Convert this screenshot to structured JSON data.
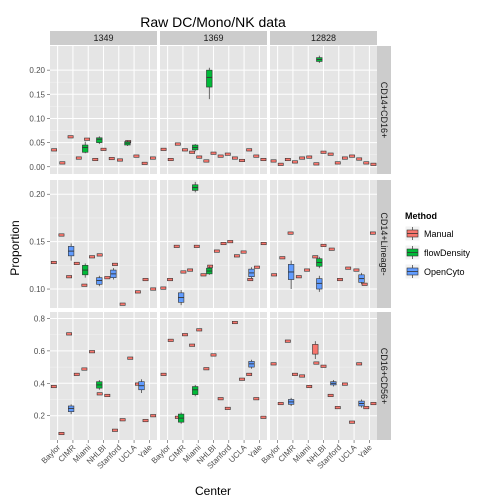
{
  "chart_data": {
    "type": "boxplot",
    "title": "Raw DC/Mono/NK data",
    "xlabel": "Center",
    "ylabel": "Proportion",
    "categories": [
      "Baylor",
      "CIMR",
      "Miami",
      "NHLBI",
      "Stanford",
      "UCLA",
      "Yale"
    ],
    "methods": [
      "Manual",
      "flowDensity",
      "OpenCyto"
    ],
    "method_colors": {
      "Manual": "#F8766D",
      "flowDensity": "#00BA38",
      "OpenCyto": "#619CFF"
    },
    "legend": {
      "title": "Method",
      "position": "right"
    },
    "columns": [
      "1349",
      "1369",
      "12828"
    ],
    "rows": [
      {
        "label": "CD14+CD16+",
        "ylim": [
          -0.015,
          0.25
        ],
        "yticks": [
          0.0,
          0.05,
          0.1,
          0.15,
          0.2
        ],
        "ticklabels": [
          "0.00",
          "0.05",
          "0.10",
          "0.15",
          "0.20"
        ]
      },
      {
        "label": "CD14+Lineage-",
        "ylim": [
          0.08,
          0.215
        ],
        "yticks": [
          0.05,
          0.1,
          0.15,
          0.2
        ],
        "ticklabels": [
          "0.05",
          "0.10",
          "0.15",
          "0.20"
        ]
      },
      {
        "label": "CD16+CD56+",
        "ylim": [
          0.05,
          0.84
        ],
        "yticks": [
          0.2,
          0.4,
          0.6,
          0.8
        ],
        "ticklabels": [
          "0.2",
          "0.4",
          "0.6",
          "0.8"
        ]
      }
    ],
    "panels": [
      [
        {
          "Manual": [
            0.035,
            0.008,
            0.062,
            0.018,
            0.057,
            0.015,
            0.036,
            0.017,
            0.014,
            0.052,
            0.022,
            0.007,
            0.018
          ],
          "flowDensity": [
            [
              2,
              0.04,
              0.03,
              0.045,
              0.028,
              0.052
            ],
            [
              3,
              0.057,
              0.05,
              0.06,
              0.047,
              0.063
            ],
            [
              5,
              0.049,
              0.045,
              0.052,
              0.043,
              0.054
            ]
          ],
          "OpenCyto": []
        },
        {
          "Manual": [
            0.036,
            0.015,
            0.047,
            0.035,
            0.03,
            0.02,
            0.012,
            0.028,
            0.022,
            0.026,
            0.018,
            0.013,
            0.035,
            0.022,
            0.015
          ],
          "flowDensity": [
            [
              2,
              0.04,
              0.035,
              0.045,
              0.032,
              0.047
            ],
            [
              3,
              0.185,
              0.165,
              0.2,
              0.14,
              0.205
            ]
          ],
          "OpenCyto": []
        },
        {
          "Manual": [
            0.012,
            0.005,
            0.015,
            0.01,
            0.018,
            0.02,
            0.006,
            0.03,
            0.026,
            0.008,
            0.018,
            0.022,
            0.016,
            0.008,
            0.005
          ],
          "flowDensity": [
            [
              3,
              0.222,
              0.218,
              0.226,
              0.215,
              0.23
            ]
          ],
          "OpenCyto": []
        }
      ],
      [
        {
          "Manual": [
            0.128,
            0.157,
            0.113,
            0.127,
            0.104,
            0.134,
            0.136,
            0.112,
            0.126,
            0.084,
            0.077,
            0.097,
            0.11,
            0.1
          ],
          "flowDensity": [
            [
              2,
              0.12,
              0.115,
              0.125,
              0.112,
              0.127
            ]
          ],
          "OpenCyto": [
            [
              1,
              0.14,
              0.135,
              0.145,
              0.13,
              0.148
            ],
            [
              3,
              0.109,
              0.105,
              0.112,
              0.103,
              0.114
            ],
            [
              4,
              0.116,
              0.112,
              0.12,
              0.11,
              0.122
            ],
            [
              6,
              0.048,
              0.044,
              0.052,
              0.042,
              0.054
            ]
          ]
        },
        {
          "Manual": [
            0.101,
            0.11,
            0.145,
            0.118,
            0.12,
            0.145,
            0.115,
            0.124,
            0.14,
            0.148,
            0.15,
            0.135,
            0.139,
            0.11,
            0.123,
            0.148
          ],
          "flowDensity": [
            [
              2,
              0.207,
              0.204,
              0.21,
              0.202,
              0.213
            ],
            [
              3,
              0.119,
              0.116,
              0.122,
              0.115,
              0.124
            ]
          ],
          "OpenCyto": [
            [
              1,
              0.091,
              0.086,
              0.096,
              0.083,
              0.099
            ],
            [
              6,
              0.117,
              0.113,
              0.121,
              0.111,
              0.123
            ]
          ]
        },
        {
          "Manual": [
            0.115,
            0.133,
            0.159,
            0.113,
            0.12,
            0.134,
            0.146,
            0.142,
            0.11,
            0.122,
            0.12,
            0.105,
            0.159
          ],
          "flowDensity": [
            [
              3,
              0.128,
              0.124,
              0.132,
              0.122,
              0.134
            ]
          ],
          "OpenCyto": [
            [
              1,
              0.118,
              0.11,
              0.126,
              0.1,
              0.13
            ],
            [
              3,
              0.106,
              0.1,
              0.111,
              0.097,
              0.114
            ],
            [
              6,
              0.111,
              0.107,
              0.115,
              0.105,
              0.117
            ]
          ]
        }
      ],
      [
        {
          "Manual": [
            0.38,
            0.09,
            0.705,
            0.455,
            0.488,
            0.595,
            0.335,
            0.325,
            0.11,
            0.175,
            0.555,
            0.395,
            0.17,
            0.2
          ],
          "flowDensity": [
            [
              3,
              0.39,
              0.37,
              0.41,
              0.36,
              0.42
            ]
          ],
          "OpenCyto": [
            [
              1,
              0.245,
              0.225,
              0.26,
              0.21,
              0.27
            ],
            [
              6,
              0.385,
              0.36,
              0.41,
              0.34,
              0.425
            ]
          ]
        },
        {
          "Manual": [
            0.455,
            0.665,
            0.19,
            0.7,
            0.635,
            0.73,
            0.49,
            0.575,
            0.305,
            0.245,
            0.775,
            0.425,
            0.455,
            0.305,
            0.19
          ],
          "flowDensity": [
            [
              1,
              0.185,
              0.16,
              0.21,
              0.15,
              0.22
            ],
            [
              2,
              0.36,
              0.33,
              0.38,
              0.32,
              0.39
            ]
          ],
          "OpenCyto": [
            [
              6,
              0.52,
              0.5,
              0.535,
              0.49,
              0.545
            ]
          ]
        },
        {
          "Manual": [
            0.52,
            0.275,
            0.66,
            0.455,
            0.445,
            0.38,
            0.525,
            0.505,
            0.325,
            0.25,
            0.395,
            0.16,
            0.52,
            0.25,
            0.275
          ],
          "flowDensity": [],
          "OpenCyto": [
            [
              1,
              0.285,
              0.27,
              0.3,
              0.26,
              0.31
            ],
            [
              4,
              0.4,
              0.39,
              0.41,
              0.38,
              0.42
            ],
            [
              6,
              0.275,
              0.26,
              0.29,
              0.25,
              0.3
            ]
          ]
        }
      ]
    ],
    "manual_big_boxes": [
      [
        2,
        2,
        5,
        [
          0.61,
          0.58,
          0.64,
          0.55,
          0.66
        ]
      ]
    ]
  }
}
